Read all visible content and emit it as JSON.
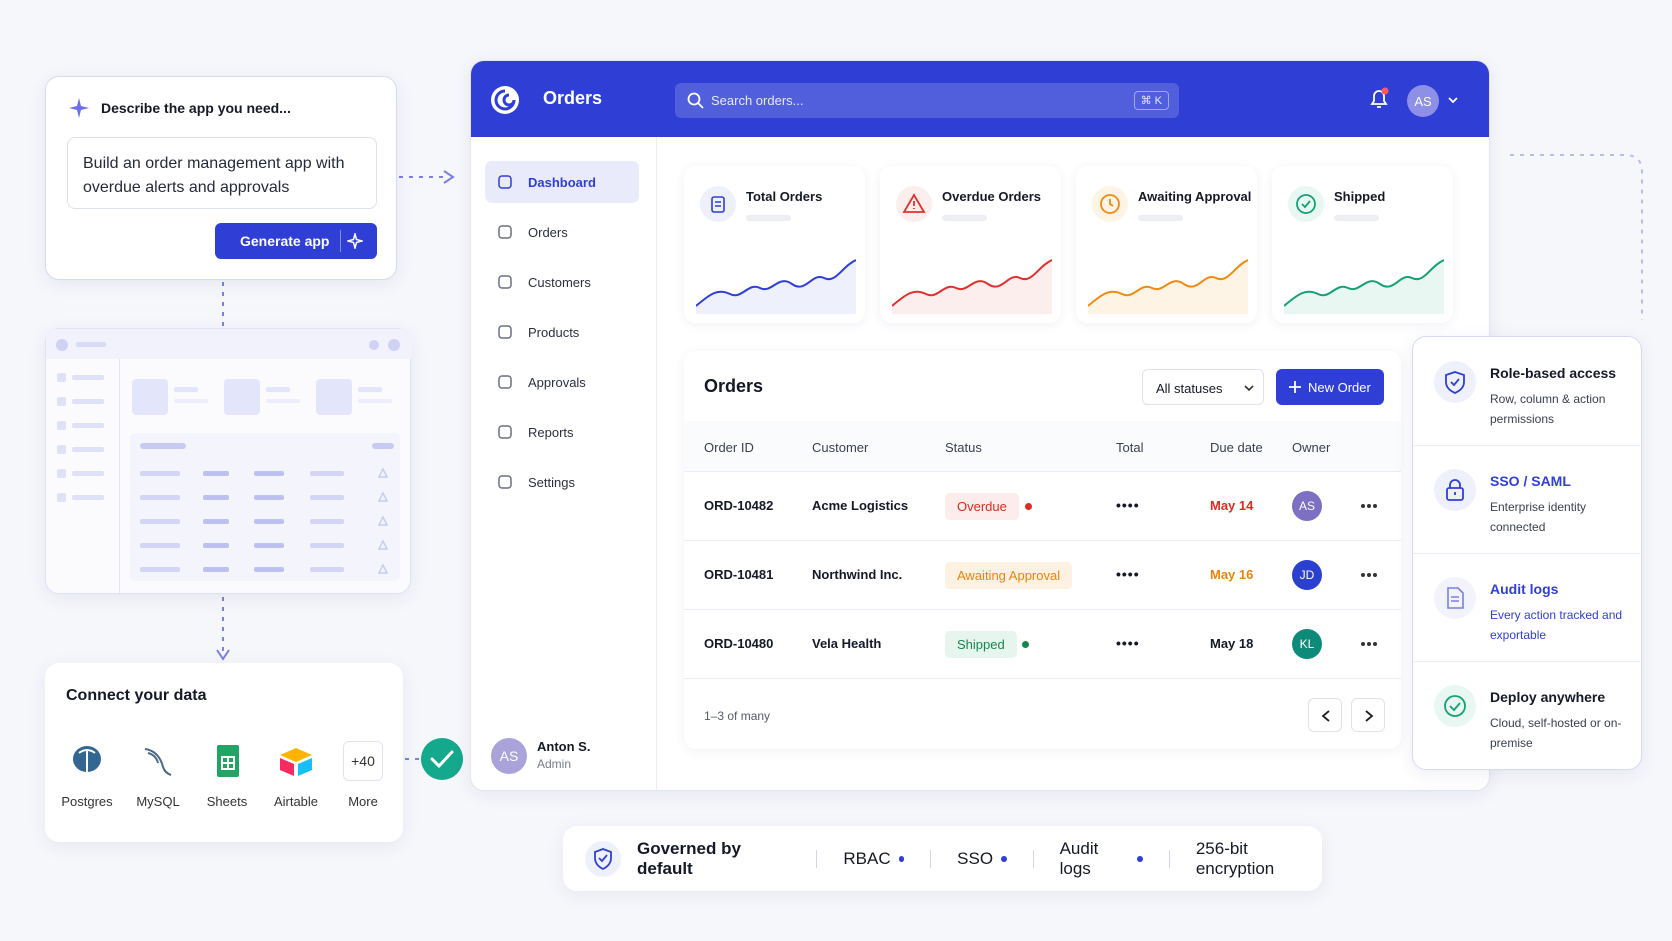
{
  "prompt_card": {
    "title": "Describe the app you need...",
    "prompt": "Build an order management app with overdue alerts and approvals",
    "button": "Generate app"
  },
  "connect_card": {
    "title": "Connect your data",
    "sources": [
      "Postgres",
      "MySQL",
      "Sheets",
      "Airtable",
      "More"
    ],
    "more_count": "+40"
  },
  "app": {
    "title": "Orders",
    "search_placeholder": "Search orders...",
    "shortcut": "⌘ K",
    "avatar": "AS",
    "nav": [
      "Dashboard",
      "Orders",
      "Customers",
      "Products",
      "Approvals",
      "Reports",
      "Settings"
    ],
    "user": {
      "initials": "AS",
      "name": "Anton S.",
      "role": "Admin"
    },
    "kpis": [
      "Total Orders",
      "Overdue Orders",
      "Awaiting Approval",
      "Shipped"
    ],
    "orders": {
      "title": "Orders",
      "filter": "All statuses",
      "new_button": "New Order",
      "columns": [
        "Order ID",
        "Customer",
        "Status",
        "Total",
        "Due date",
        "Owner"
      ],
      "rows": [
        {
          "id": "ORD-10482",
          "customer": "Acme Logistics",
          "status": "Overdue",
          "total": "••••",
          "due": "May 14",
          "owner": "AS"
        },
        {
          "id": "ORD-10481",
          "customer": "Northwind Inc.",
          "status": "Awaiting Approval",
          "total": "••••",
          "due": "May 16",
          "owner": "JD"
        },
        {
          "id": "ORD-10480",
          "customer": "Vela Health",
          "status": "Shipped",
          "total": "••••",
          "due": "May 18",
          "owner": "KL"
        }
      ],
      "pagination": "1–3 of many"
    }
  },
  "features": [
    {
      "title": "Role-based access",
      "description": "Row, column & action permissions"
    },
    {
      "title": "SSO / SAML",
      "description": "Enterprise identity connected"
    },
    {
      "title": "Audit logs",
      "description": "Every action tracked and exportable"
    },
    {
      "title": "Deploy anywhere",
      "description": "Cloud, self-hosted or on-premise"
    }
  ],
  "footer": {
    "title": "Governed by default",
    "items": [
      "RBAC",
      "SSO",
      "Audit logs",
      "256-bit encryption"
    ]
  }
}
